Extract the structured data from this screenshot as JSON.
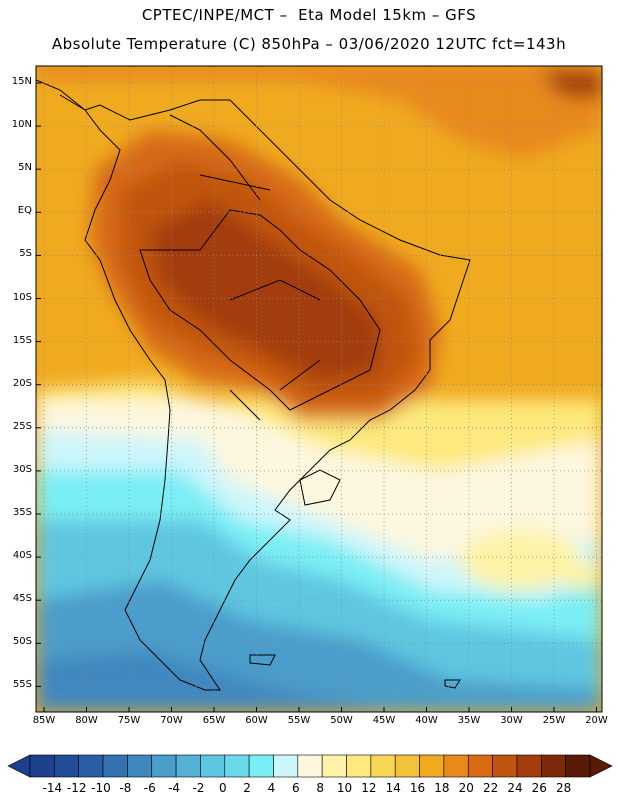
{
  "header": {
    "line1": "CPTEC/INPE/MCT –  Eta Model 15km – GFS",
    "line2": "Absolute Temperature (C) 850hPa – 03/06/2020 12UTC fct=143h"
  },
  "map": {
    "lat_labels": [
      "15N",
      "10N",
      "5N",
      "EQ",
      "5S",
      "10S",
      "15S",
      "20S",
      "25S",
      "30S",
      "35S",
      "40S",
      "45S",
      "50S",
      "55S"
    ],
    "lon_labels": [
      "85W",
      "80W",
      "75W",
      "70W",
      "65W",
      "60W",
      "55W",
      "50W",
      "45W",
      "40W",
      "35W",
      "30W",
      "25W",
      "20W"
    ]
  },
  "colorbar": {
    "labels": [
      "-14",
      "-12",
      "-10",
      "-8",
      "-6",
      "-4",
      "-2",
      "0",
      "2",
      "4",
      "6",
      "8",
      "10",
      "12",
      "14",
      "16",
      "18",
      "20",
      "22",
      "24",
      "26",
      "28"
    ],
    "colors": [
      "#1d3f8c",
      "#214c98",
      "#2a5fa6",
      "#3472b2",
      "#3f88bf",
      "#4b9dcb",
      "#55b1d6",
      "#5ec6e0",
      "#6ad9ea",
      "#7aeef5",
      "#cdf6fb",
      "#fdf7df",
      "#fdf3a6",
      "#fde97d",
      "#f8d656",
      "#f4c23a",
      "#f0aa20",
      "#e8891a",
      "#d76a12",
      "#c1540f",
      "#a33e0c",
      "#7d2a0a",
      "#5a1a08"
    ]
  }
}
